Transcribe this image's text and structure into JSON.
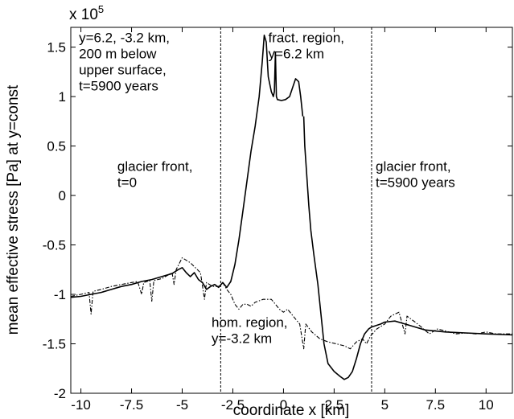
{
  "chart_data": {
    "type": "line",
    "title": "",
    "xlabel": "coordinate x [km]",
    "ylabel": "mean effective stress [Pa] at y=const",
    "y_multiplier_base": "x 10",
    "y_multiplier_exponent": "5",
    "xlim": [
      -10.5,
      11.3
    ],
    "ylim": [
      -2.0,
      1.7
    ],
    "x_ticks": [
      -10,
      -7.5,
      -5,
      -2.5,
      0,
      2.5,
      5,
      7.5,
      10
    ],
    "x_tick_labels": [
      "-10",
      "-7.5",
      "-5",
      "-2.5",
      "0",
      "2.5",
      "5",
      "7.5",
      "10"
    ],
    "y_ticks": [
      -2,
      -1.5,
      -1,
      -0.5,
      0,
      0.5,
      1,
      1.5
    ],
    "y_tick_labels": [
      "-2",
      "-1.5",
      "-1",
      "-0.5",
      "0",
      "0.5",
      "1",
      "1.5"
    ],
    "grid": false,
    "vertical_lines": [
      {
        "x": -3.1,
        "style": "dashed"
      },
      {
        "x": 4.35,
        "style": "dashed"
      }
    ],
    "annotations": [
      {
        "lines": [
          "y=6.2, -3.2 km,",
          "200 m below",
          "upper surface,",
          "t=5900 years"
        ],
        "x": -10.1,
        "y": 1.55
      },
      {
        "lines": [
          "fract. region,",
          "y=6.2 km"
        ],
        "x": -0.75,
        "y": 1.55
      },
      {
        "lines": [
          "glacier front,",
          "t=0"
        ],
        "x": -8.2,
        "y": 0.25
      },
      {
        "lines": [
          "glacier front,",
          "t=5900 years"
        ],
        "x": 4.55,
        "y": 0.25
      },
      {
        "lines": [
          "hom. region,",
          "y=-3.2 km"
        ],
        "x": -3.55,
        "y": -1.33
      }
    ],
    "series": [
      {
        "style": "solid",
        "points": [
          [
            -10.5,
            -1.03
          ],
          [
            -10,
            -1.02
          ],
          [
            -9.5,
            -1.0
          ],
          [
            -9,
            -0.98
          ],
          [
            -8.5,
            -0.95
          ],
          [
            -8,
            -0.92
          ],
          [
            -7.5,
            -0.9
          ],
          [
            -7,
            -0.87
          ],
          [
            -6.5,
            -0.85
          ],
          [
            -6,
            -0.82
          ],
          [
            -5.5,
            -0.79
          ],
          [
            -5.2,
            -0.75
          ],
          [
            -5,
            -0.73
          ],
          [
            -4.8,
            -0.78
          ],
          [
            -4.6,
            -0.82
          ],
          [
            -4.4,
            -0.78
          ],
          [
            -4.2,
            -0.85
          ],
          [
            -4,
            -0.88
          ],
          [
            -3.8,
            -0.95
          ],
          [
            -3.6,
            -0.92
          ],
          [
            -3.4,
            -0.9
          ],
          [
            -3.2,
            -0.93
          ],
          [
            -3.0,
            -0.88
          ],
          [
            -2.8,
            -0.93
          ],
          [
            -2.6,
            -0.87
          ],
          [
            -2.4,
            -0.7
          ],
          [
            -2.2,
            -0.45
          ],
          [
            -2.0,
            -0.15
          ],
          [
            -1.8,
            0.15
          ],
          [
            -1.6,
            0.45
          ],
          [
            -1.4,
            0.7
          ],
          [
            -1.2,
            1.0
          ],
          [
            -1.05,
            1.35
          ],
          [
            -0.95,
            1.62
          ],
          [
            -0.85,
            1.55
          ],
          [
            -0.75,
            1.2
          ],
          [
            -0.6,
            1.05
          ],
          [
            -0.5,
            1.0
          ],
          [
            -0.45,
            1.05
          ],
          [
            -0.4,
            1.45
          ],
          [
            -0.35,
            1.0
          ],
          [
            -0.3,
            0.97
          ],
          [
            -0.1,
            0.96
          ],
          [
            0.1,
            0.97
          ],
          [
            0.3,
            1.0
          ],
          [
            0.5,
            1.12
          ],
          [
            0.6,
            1.18
          ],
          [
            0.75,
            1.15
          ],
          [
            0.85,
            1.0
          ],
          [
            0.95,
            0.8
          ]
        ]
      },
      {
        "style": "solid",
        "points": [
          [
            1.0,
            0.8
          ],
          [
            1.05,
            0.5
          ],
          [
            1.15,
            0.2
          ],
          [
            1.25,
            -0.1
          ],
          [
            1.35,
            -0.35
          ],
          [
            1.5,
            -0.6
          ],
          [
            1.7,
            -0.9
          ],
          [
            1.85,
            -1.2
          ],
          [
            2.0,
            -1.5
          ],
          [
            2.2,
            -1.7
          ],
          [
            2.5,
            -1.78
          ],
          [
            2.8,
            -1.83
          ],
          [
            3.0,
            -1.86
          ],
          [
            3.2,
            -1.84
          ],
          [
            3.4,
            -1.78
          ],
          [
            3.6,
            -1.65
          ],
          [
            3.8,
            -1.5
          ],
          [
            4.0,
            -1.4
          ],
          [
            4.2,
            -1.35
          ],
          [
            4.35,
            -1.33
          ],
          [
            4.5,
            -1.32
          ],
          [
            4.8,
            -1.3
          ],
          [
            5.0,
            -1.28
          ],
          [
            5.5,
            -1.27
          ],
          [
            6.0,
            -1.3
          ],
          [
            6.5,
            -1.33
          ],
          [
            7.0,
            -1.36
          ],
          [
            8.0,
            -1.38
          ],
          [
            9.0,
            -1.39
          ],
          [
            10.0,
            -1.4
          ],
          [
            11.3,
            -1.41
          ]
        ]
      },
      {
        "style": "dashdot",
        "points": [
          [
            -10.5,
            -1.02
          ],
          [
            -10,
            -1.0
          ],
          [
            -9.6,
            -0.98
          ],
          [
            -9.5,
            -1.2
          ],
          [
            -9.4,
            -0.97
          ],
          [
            -9,
            -0.95
          ],
          [
            -8.5,
            -0.92
          ],
          [
            -8,
            -0.9
          ],
          [
            -7.5,
            -0.88
          ],
          [
            -7.2,
            -0.87
          ],
          [
            -7.0,
            -1.0
          ],
          [
            -6.9,
            -0.88
          ],
          [
            -6.6,
            -0.86
          ],
          [
            -6.5,
            -1.07
          ],
          [
            -6.4,
            -0.86
          ],
          [
            -6,
            -0.84
          ],
          [
            -5.5,
            -0.78
          ],
          [
            -5.4,
            -0.9
          ],
          [
            -5.3,
            -0.75
          ],
          [
            -5.0,
            -0.63
          ],
          [
            -4.6,
            -0.68
          ],
          [
            -4.4,
            -0.72
          ],
          [
            -4.1,
            -0.78
          ],
          [
            -3.9,
            -1.05
          ],
          [
            -3.8,
            -0.88
          ],
          [
            -3.5,
            -0.92
          ],
          [
            -3.2,
            -0.92
          ],
          [
            -3.0,
            -0.88
          ],
          [
            -2.8,
            -0.95
          ],
          [
            -2.6,
            -1.0
          ],
          [
            -2.4,
            -1.1
          ],
          [
            -2.2,
            -1.15
          ],
          [
            -2.0,
            -1.1
          ],
          [
            -1.8,
            -1.1
          ],
          [
            -1.6,
            -1.12
          ],
          [
            -1.4,
            -1.08
          ],
          [
            -1.0,
            -1.05
          ],
          [
            -0.6,
            -1.05
          ],
          [
            -0.4,
            -1.1
          ],
          [
            -0.2,
            -1.15
          ],
          [
            0.0,
            -1.18
          ],
          [
            0.2,
            -1.15
          ],
          [
            0.4,
            -1.2
          ],
          [
            0.6,
            -1.25
          ],
          [
            0.8,
            -1.3
          ],
          [
            1.0,
            -1.55
          ],
          [
            1.1,
            -1.3
          ],
          [
            1.4,
            -1.38
          ],
          [
            1.8,
            -1.45
          ],
          [
            2.2,
            -1.48
          ],
          [
            2.6,
            -1.5
          ],
          [
            3.0,
            -1.52
          ],
          [
            3.3,
            -1.55
          ],
          [
            3.6,
            -1.48
          ],
          [
            3.9,
            -1.45
          ],
          [
            4.1,
            -1.5
          ],
          [
            4.3,
            -1.42
          ],
          [
            4.6,
            -1.35
          ],
          [
            5.0,
            -1.3
          ],
          [
            5.3,
            -1.22
          ],
          [
            5.7,
            -1.18
          ],
          [
            6.0,
            -1.4
          ],
          [
            6.1,
            -1.22
          ],
          [
            6.5,
            -1.28
          ],
          [
            6.8,
            -1.33
          ],
          [
            7.2,
            -1.4
          ],
          [
            7.6,
            -1.35
          ],
          [
            8.0,
            -1.37
          ],
          [
            8.5,
            -1.4
          ],
          [
            9.0,
            -1.39
          ],
          [
            9.5,
            -1.4
          ],
          [
            10,
            -1.38
          ],
          [
            10.5,
            -1.4
          ],
          [
            11.3,
            -1.4
          ]
        ]
      }
    ]
  }
}
